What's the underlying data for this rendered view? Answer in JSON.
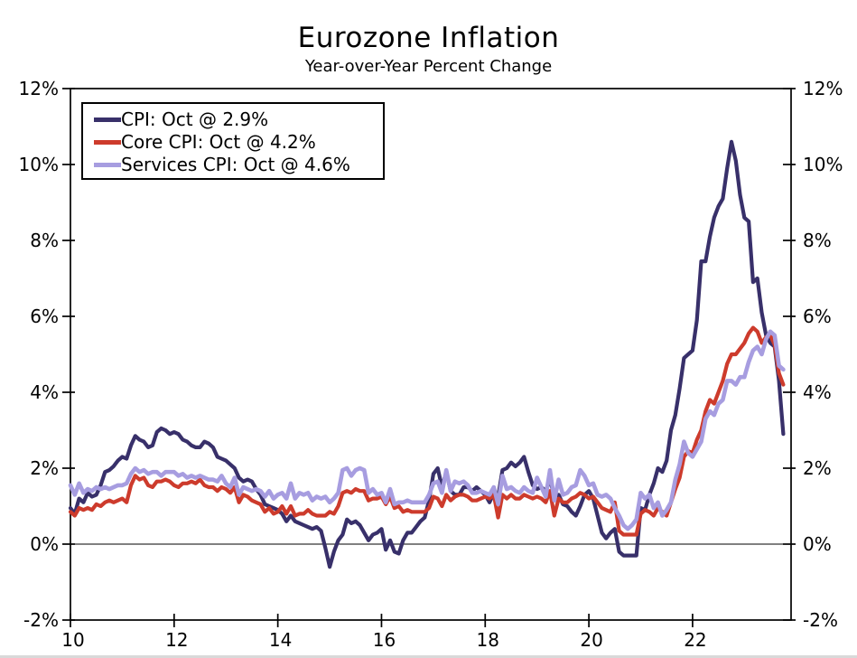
{
  "title": "Eurozone Inflation",
  "subtitle": "Year-over-Year Percent Change",
  "legend": {
    "items": [
      {
        "label": "CPI: Oct @ 2.9%",
        "color": "#38306a"
      },
      {
        "label": "Core CPI: Oct @ 4.2%",
        "color": "#cd3b2c"
      },
      {
        "label": "Services CPI: Oct @ 4.6%",
        "color": "#a79de0"
      }
    ]
  },
  "chart_data": {
    "type": "line",
    "title": "Eurozone Inflation",
    "subtitle": "Year-over-Year Percent Change",
    "xlabel": "",
    "ylabel": "",
    "x_monthly_from": "2010-01",
    "x_monthly_to": "2023-10",
    "x_tick_labels": [
      "10",
      "12",
      "14",
      "16",
      "18",
      "20",
      "22"
    ],
    "x_tick_years": [
      2010,
      2012,
      2014,
      2016,
      2018,
      2020,
      2022
    ],
    "xlim_years": [
      2010.0,
      2023.9
    ],
    "y_ticks": [
      -2,
      0,
      2,
      4,
      6,
      8,
      10,
      12
    ],
    "y_tick_suffix": "%",
    "ylim": [
      -2,
      12
    ],
    "grid": false,
    "zero_line": true,
    "dual_y_axis": true,
    "legend_position": "top-left",
    "axis_color": "#000000",
    "series": [
      {
        "id": "cpi",
        "name": "CPI: Oct @ 2.9%",
        "color": "#38306a",
        "width": 4.2,
        "values": [
          0.95,
          0.8,
          1.2,
          1.1,
          1.35,
          1.25,
          1.3,
          1.55,
          1.9,
          1.95,
          2.05,
          2.2,
          2.3,
          2.25,
          2.6,
          2.85,
          2.75,
          2.7,
          2.55,
          2.6,
          2.95,
          3.05,
          3.0,
          2.9,
          2.95,
          2.9,
          2.75,
          2.7,
          2.6,
          2.55,
          2.55,
          2.7,
          2.65,
          2.55,
          2.3,
          2.25,
          2.2,
          2.1,
          2.0,
          1.75,
          1.65,
          1.7,
          1.65,
          1.45,
          1.3,
          1.05,
          1.0,
          0.95,
          0.9,
          0.8,
          0.6,
          0.75,
          0.6,
          0.55,
          0.5,
          0.45,
          0.4,
          0.45,
          0.35,
          -0.1,
          -0.6,
          -0.2,
          0.1,
          0.25,
          0.65,
          0.55,
          0.6,
          0.5,
          0.3,
          0.1,
          0.25,
          0.3,
          0.4,
          -0.15,
          0.1,
          -0.2,
          -0.25,
          0.1,
          0.3,
          0.3,
          0.45,
          0.6,
          0.7,
          1.15,
          1.85,
          2.0,
          1.5,
          1.9,
          1.4,
          1.3,
          1.3,
          1.5,
          1.5,
          1.4,
          1.5,
          1.4,
          1.3,
          1.1,
          1.35,
          1.25,
          1.95,
          2.0,
          2.15,
          2.05,
          2.15,
          2.3,
          1.9,
          1.55,
          1.45,
          1.5,
          1.4,
          1.7,
          1.25,
          1.3,
          1.05,
          1.0,
          0.85,
          0.75,
          1.0,
          1.3,
          1.4,
          1.2,
          0.75,
          0.3,
          0.15,
          0.3,
          0.4,
          -0.2,
          -0.3,
          -0.3,
          -0.3,
          -0.3,
          0.95,
          0.9,
          1.3,
          1.6,
          2.0,
          1.9,
          2.2,
          3.0,
          3.4,
          4.1,
          4.9,
          5.0,
          5.1,
          5.9,
          7.45,
          7.45,
          8.1,
          8.6,
          8.9,
          9.1,
          9.9,
          10.6,
          10.1,
          9.2,
          8.6,
          8.5,
          6.9,
          7.0,
          6.1,
          5.5,
          5.3,
          5.2,
          4.3,
          2.9
        ]
      },
      {
        "id": "core-cpi",
        "name": "Core CPI: Oct @ 4.2%",
        "color": "#cd3b2c",
        "width": 4.2,
        "values": [
          0.85,
          0.75,
          0.95,
          0.9,
          0.95,
          0.9,
          1.05,
          1.0,
          1.1,
          1.15,
          1.1,
          1.15,
          1.2,
          1.1,
          1.55,
          1.8,
          1.7,
          1.75,
          1.55,
          1.5,
          1.65,
          1.65,
          1.7,
          1.65,
          1.55,
          1.5,
          1.6,
          1.6,
          1.65,
          1.6,
          1.7,
          1.55,
          1.5,
          1.5,
          1.4,
          1.5,
          1.45,
          1.35,
          1.5,
          1.1,
          1.3,
          1.25,
          1.15,
          1.1,
          1.05,
          0.85,
          0.95,
          0.8,
          0.85,
          1.0,
          0.8,
          1.0,
          0.75,
          0.8,
          0.8,
          0.9,
          0.8,
          0.75,
          0.75,
          0.75,
          0.85,
          0.8,
          1.0,
          1.35,
          1.4,
          1.35,
          1.45,
          1.4,
          1.4,
          1.15,
          1.2,
          1.2,
          1.25,
          1.05,
          1.25,
          0.95,
          1.0,
          0.85,
          0.9,
          0.85,
          0.85,
          0.85,
          0.85,
          0.95,
          1.25,
          1.2,
          1.0,
          1.3,
          1.15,
          1.25,
          1.3,
          1.3,
          1.25,
          1.15,
          1.15,
          1.2,
          1.25,
          1.2,
          1.3,
          0.7,
          1.3,
          1.2,
          1.3,
          1.2,
          1.2,
          1.3,
          1.25,
          1.2,
          1.25,
          1.2,
          1.1,
          1.4,
          0.75,
          1.2,
          1.1,
          1.1,
          1.2,
          1.25,
          1.35,
          1.3,
          1.2,
          1.25,
          1.1,
          0.95,
          0.9,
          0.85,
          1.1,
          0.35,
          0.25,
          0.25,
          0.25,
          0.25,
          0.8,
          0.9,
          0.85,
          0.75,
          0.95,
          0.85,
          0.75,
          1.1,
          1.45,
          1.75,
          2.3,
          2.45,
          2.4,
          2.75,
          3.0,
          3.5,
          3.8,
          3.7,
          4.0,
          4.3,
          4.75,
          5.0,
          5.0,
          5.15,
          5.3,
          5.55,
          5.7,
          5.6,
          5.3,
          5.45,
          5.5,
          5.25,
          4.5,
          4.2
        ]
      },
      {
        "id": "services-cpi",
        "name": "Services CPI: Oct @ 4.6%",
        "color": "#a79de0",
        "width": 4.6,
        "values": [
          1.55,
          1.3,
          1.6,
          1.35,
          1.45,
          1.4,
          1.5,
          1.45,
          1.5,
          1.45,
          1.5,
          1.55,
          1.55,
          1.6,
          1.85,
          2.0,
          1.9,
          1.95,
          1.85,
          1.9,
          1.9,
          1.8,
          1.9,
          1.9,
          1.9,
          1.8,
          1.85,
          1.75,
          1.8,
          1.75,
          1.8,
          1.75,
          1.7,
          1.7,
          1.65,
          1.8,
          1.6,
          1.5,
          1.75,
          1.3,
          1.5,
          1.45,
          1.4,
          1.45,
          1.4,
          1.25,
          1.4,
          1.2,
          1.3,
          1.35,
          1.2,
          1.6,
          1.2,
          1.35,
          1.3,
          1.35,
          1.15,
          1.25,
          1.2,
          1.25,
          1.1,
          1.2,
          1.35,
          1.95,
          2.0,
          1.8,
          1.95,
          2.0,
          1.95,
          1.35,
          1.45,
          1.3,
          1.35,
          1.1,
          1.45,
          1.05,
          1.1,
          1.1,
          1.15,
          1.1,
          1.1,
          1.1,
          1.1,
          1.3,
          1.6,
          1.65,
          1.35,
          1.95,
          1.4,
          1.65,
          1.6,
          1.65,
          1.55,
          1.35,
          1.35,
          1.4,
          1.35,
          1.3,
          1.5,
          1.05,
          1.8,
          1.45,
          1.5,
          1.4,
          1.35,
          1.5,
          1.4,
          1.35,
          1.75,
          1.5,
          1.25,
          1.95,
          1.15,
          1.7,
          1.3,
          1.35,
          1.5,
          1.55,
          1.95,
          1.8,
          1.55,
          1.6,
          1.3,
          1.25,
          1.3,
          1.2,
          0.95,
          0.75,
          0.5,
          0.4,
          0.5,
          0.65,
          1.35,
          1.2,
          1.3,
          0.95,
          1.1,
          0.75,
          0.9,
          1.1,
          1.7,
          2.1,
          2.7,
          2.4,
          2.3,
          2.5,
          2.7,
          3.3,
          3.5,
          3.4,
          3.7,
          3.8,
          4.3,
          4.3,
          4.2,
          4.4,
          4.4,
          4.8,
          5.1,
          5.2,
          5.0,
          5.4,
          5.6,
          5.5,
          4.7,
          4.6
        ]
      }
    ]
  }
}
